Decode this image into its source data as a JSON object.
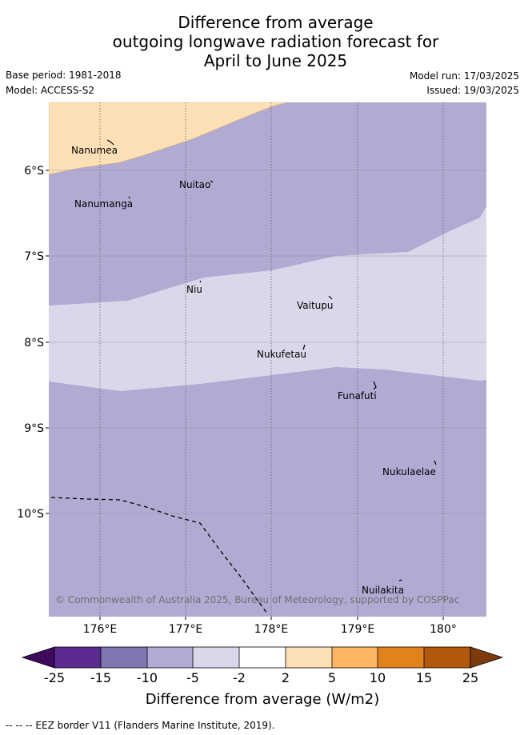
{
  "title": {
    "line1": "Difference from average",
    "line2": "outgoing longwave radiation forecast for",
    "line3": "April to June 2025"
  },
  "meta": {
    "base_period": "Base period: 1981-2018",
    "model": "Model: ACCESS-S2",
    "model_run": "Model run: 17/03/2025",
    "issued": "Issued: 19/03/2025"
  },
  "map": {
    "latitude_labels": [
      "6°S",
      "7°S",
      "8°S",
      "9°S",
      "10°S"
    ],
    "longitude_labels": [
      "176°E",
      "177°E",
      "178°E",
      "179°E",
      "180°"
    ],
    "places": [
      "Nanumea",
      "Nuitao",
      "Nanumanga",
      "Niu",
      "Vaitupu",
      "Nukufetau",
      "Funafuti",
      "Nukulaelae",
      "Nuilakita"
    ],
    "copyright": "© Commonwealth of Australia 2025, Bureau of Meteorology, supported by COSPPac",
    "category_colors": {
      "plus_2_to_5": "#fde0b6",
      "minus_5_to_minus_2": "#d8d8ea",
      "minus_10_to_minus_5": "#b1abd3"
    }
  },
  "colorbar": {
    "tick_labels": [
      "-25",
      "-15",
      "-10",
      "-5",
      "-2",
      "2",
      "5",
      "10",
      "15",
      "25"
    ],
    "label": "Difference from average (W/m2)",
    "colors": [
      "#3f0a5c",
      "#5b2a8e",
      "#8176b0",
      "#b1abd3",
      "#d8d8ea",
      "#ffffff",
      "#fde0b6",
      "#fdb763",
      "#e2821d",
      "#b3580a",
      "#7d3a0b"
    ]
  },
  "footnote": "-- -- -- EEZ border V11 (Flanders Marine Institute, 2019)."
}
